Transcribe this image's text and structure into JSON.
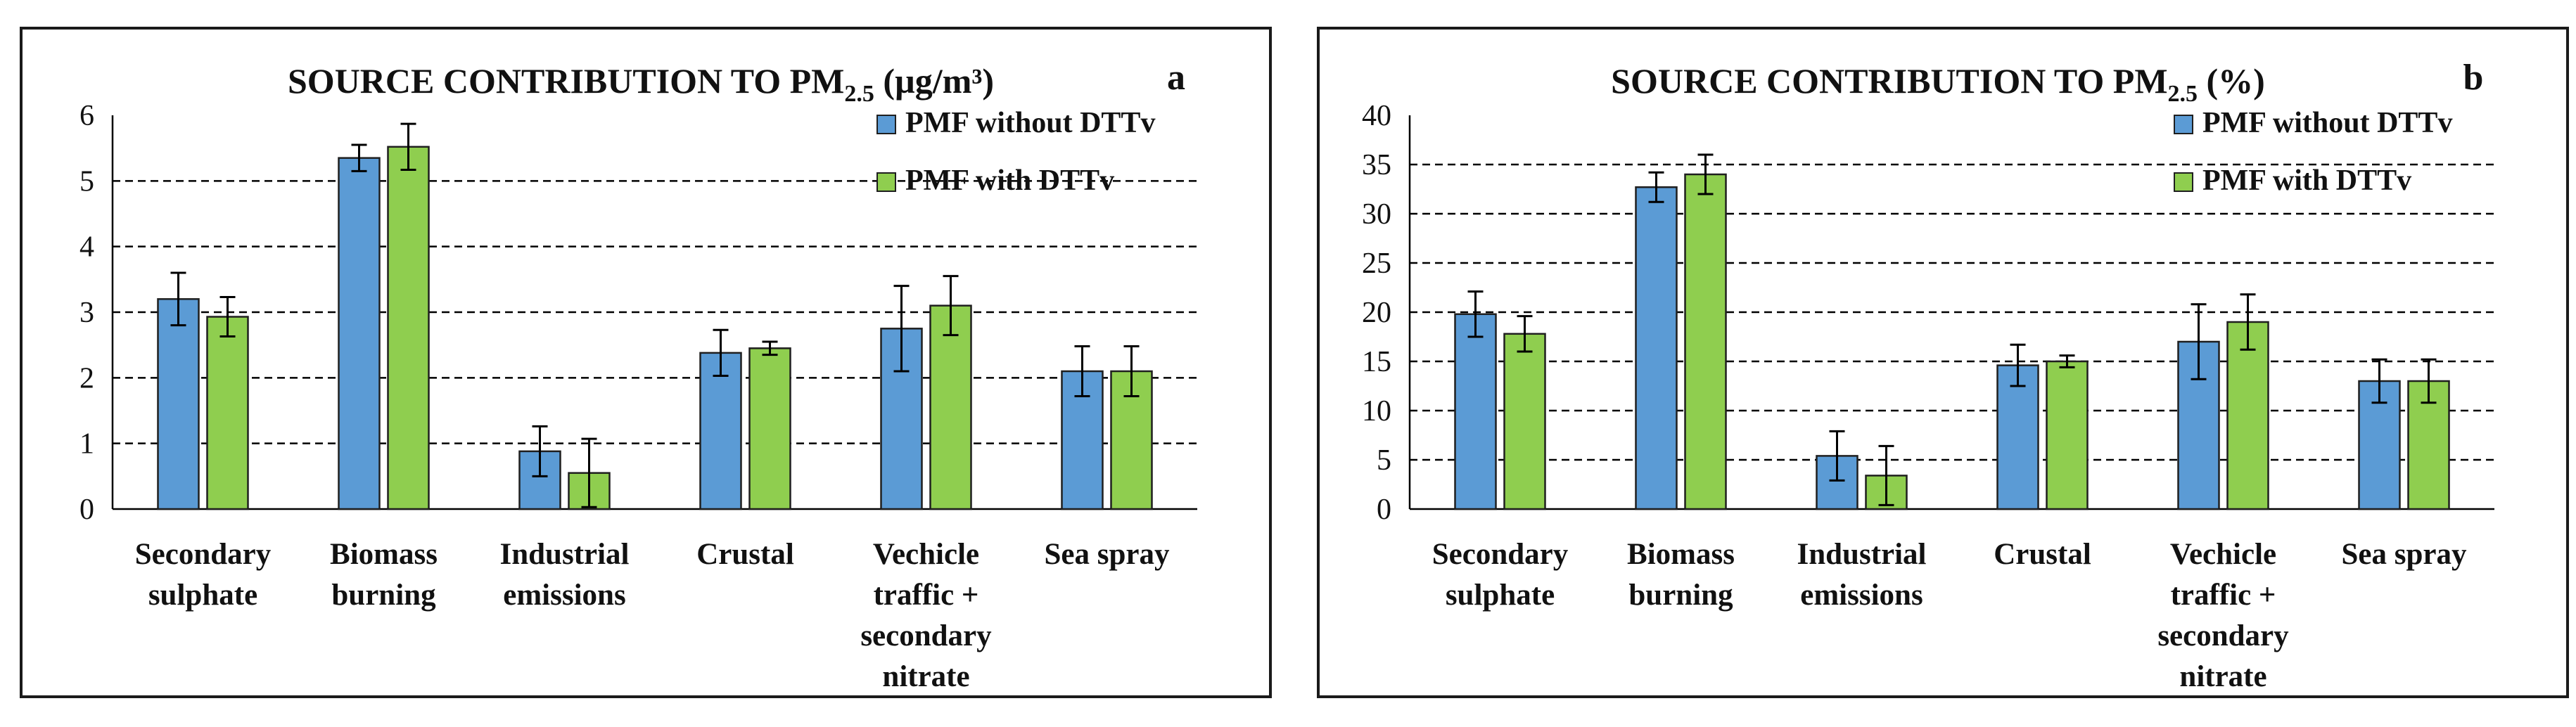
{
  "colors": {
    "without": "#5b9bd5",
    "with": "#8fce4f",
    "stroke": "#1f1f1f"
  },
  "legend": {
    "without": "PMF without DTTv",
    "with": "PMF with DTTv"
  },
  "chart_data": [
    {
      "panel_letter": "a",
      "type": "bar",
      "title": "SOURCE CONTRIBUTION TO PM",
      "title_subscript": "2.5",
      "title_suffix": " (µg/m³)",
      "categories": [
        [
          "Secondary",
          "sulphate"
        ],
        [
          "Biomass",
          "burning"
        ],
        [
          "Industrial",
          "emissions"
        ],
        [
          "Crustal"
        ],
        [
          "Vechicle",
          "traffic +",
          "secondary",
          "nitrate"
        ],
        [
          "Sea spray"
        ]
      ],
      "ylim": [
        0,
        6
      ],
      "yticks": [
        0,
        1,
        2,
        3,
        4,
        5,
        6
      ],
      "gridlines": [
        1,
        2,
        3,
        4,
        5
      ],
      "series": [
        {
          "name": "PMF without DTTv",
          "values": [
            3.2,
            5.35,
            0.88,
            2.38,
            2.75,
            2.1
          ],
          "errors": [
            0.4,
            0.2,
            0.38,
            0.35,
            0.65,
            0.38
          ]
        },
        {
          "name": "PMF with DTTv",
          "values": [
            2.93,
            5.52,
            0.55,
            2.45,
            3.1,
            2.1
          ],
          "errors": [
            0.3,
            0.35,
            0.52,
            0.1,
            0.45,
            0.38
          ]
        }
      ]
    },
    {
      "panel_letter": "b",
      "type": "bar",
      "title": "SOURCE CONTRIBUTION TO PM",
      "title_subscript": "2.5",
      "title_suffix": " (%)",
      "categories": [
        [
          "Secondary",
          "sulphate"
        ],
        [
          "Biomass",
          "burning"
        ],
        [
          "Industrial",
          "emissions"
        ],
        [
          "Crustal"
        ],
        [
          "Vechicle",
          "traffic +",
          "secondary",
          "nitrate"
        ],
        [
          "Sea spray"
        ]
      ],
      "ylim": [
        0,
        40
      ],
      "yticks": [
        0,
        5,
        10,
        15,
        20,
        25,
        30,
        35,
        40
      ],
      "gridlines": [
        5,
        10,
        15,
        20,
        25,
        30,
        35
      ],
      "series": [
        {
          "name": "PMF without DTTv",
          "values": [
            19.8,
            32.7,
            5.4,
            14.6,
            17.0,
            13.0
          ],
          "errors": [
            2.3,
            1.5,
            2.5,
            2.1,
            3.8,
            2.2
          ]
        },
        {
          "name": "PMF with DTTv",
          "values": [
            17.8,
            34.0,
            3.4,
            15.0,
            19.0,
            13.0
          ],
          "errors": [
            1.8,
            2.0,
            3.0,
            0.6,
            2.8,
            2.2
          ]
        }
      ]
    }
  ]
}
